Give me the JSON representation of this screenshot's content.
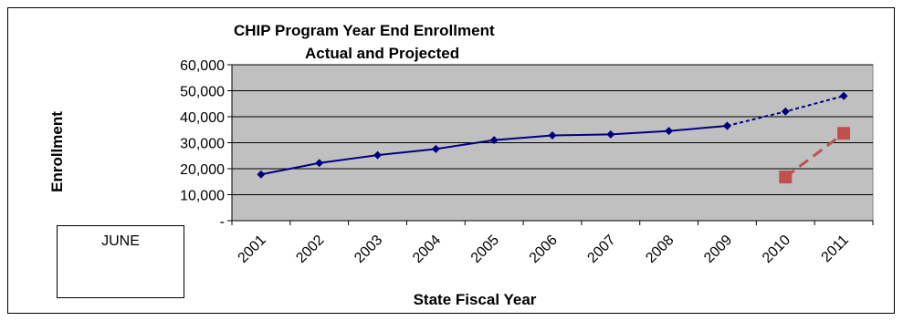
{
  "chart_data": {
    "type": "line",
    "title": "CHIP Program Year End Enrollment",
    "subtitle": "Actual and Projected",
    "xlabel": "State Fiscal Year",
    "ylabel": "Enrollment",
    "categories": [
      "2001",
      "2002",
      "2003",
      "2004",
      "2005",
      "2006",
      "2007",
      "2008",
      "2009",
      "2010",
      "2011"
    ],
    "ylim": [
      0,
      60000
    ],
    "ytick_labels": [
      "-",
      "10,000",
      "20,000",
      "30,000",
      "40,000",
      "50,000",
      "60,000"
    ],
    "ytick_values": [
      0,
      10000,
      20000,
      30000,
      40000,
      50000,
      60000
    ],
    "grid": true,
    "plot_background": "#c0c0c0",
    "series": [
      {
        "style": "solid",
        "color": "#000080",
        "marker": "diamond",
        "x": [
          "2001",
          "2002",
          "2003",
          "2004",
          "2005",
          "2006",
          "2007",
          "2008",
          "2009"
        ],
        "values": [
          17800,
          22200,
          25200,
          27600,
          31000,
          32800,
          33200,
          34500,
          36500
        ]
      },
      {
        "style": "dotted",
        "color": "#000080",
        "marker": "diamond",
        "x": [
          "2009",
          "2010",
          "2011"
        ],
        "values": [
          36500,
          42000,
          48000
        ]
      },
      {
        "style": "dashed",
        "color": "#c0504d",
        "marker": "square",
        "x": [
          "2010",
          "2011"
        ],
        "values": [
          16800,
          33600
        ]
      }
    ]
  },
  "note_box": {
    "text": "JUNE"
  }
}
